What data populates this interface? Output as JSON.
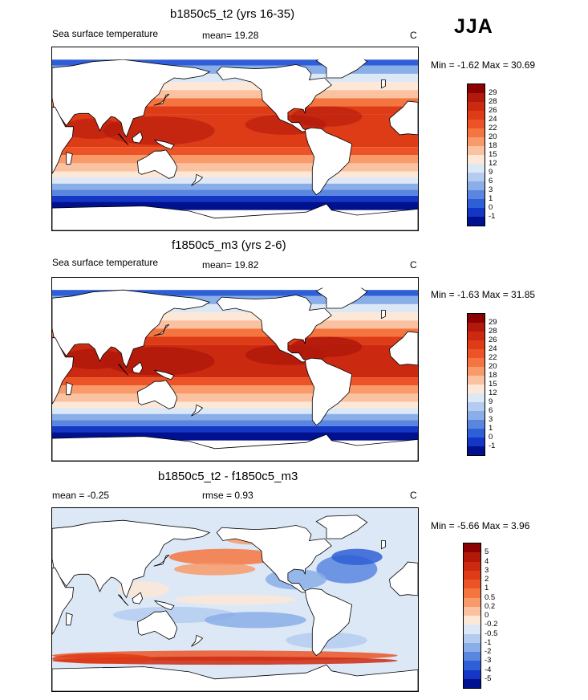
{
  "season": "JJA",
  "panels": [
    {
      "id": "top",
      "title": "b1850c5_t2 (yrs 16-35)",
      "left_label": "Sea surface temperature",
      "mean_text": "mean=  19.28",
      "units": "C",
      "minmax": "Min =  -1.62 Max =  30.69",
      "scale": "absolute",
      "levels": [
        "29",
        "28",
        "26",
        "24",
        "22",
        "20",
        "18",
        "15",
        "12",
        "9",
        "6",
        "3",
        "1",
        "0",
        "-1"
      ],
      "colors": [
        "#8b0000",
        "#b2190b",
        "#cc2a10",
        "#de3b17",
        "#ec5427",
        "#f4753f",
        "#f89a6a",
        "#fbc2a1",
        "#fde8d7",
        "#dde8f6",
        "#b5ccf0",
        "#8aaee8",
        "#5a86e0",
        "#2f5fd6",
        "#1436c4",
        "#00118f"
      ]
    },
    {
      "id": "middle",
      "title": "f1850c5_m3 (yrs 2-6)",
      "left_label": "Sea surface temperature",
      "mean_text": "mean=  19.82",
      "units": "C",
      "minmax": "Min =  -1.63 Max =  31.85",
      "scale": "absolute",
      "levels": [
        "29",
        "28",
        "26",
        "24",
        "22",
        "20",
        "18",
        "15",
        "12",
        "9",
        "6",
        "3",
        "1",
        "0",
        "-1"
      ],
      "colors": [
        "#8b0000",
        "#b2190b",
        "#cc2a10",
        "#de3b17",
        "#ec5427",
        "#f4753f",
        "#f89a6a",
        "#fbc2a1",
        "#fde8d7",
        "#dde8f6",
        "#b5ccf0",
        "#8aaee8",
        "#5a86e0",
        "#2f5fd6",
        "#1436c4",
        "#00118f"
      ]
    },
    {
      "id": "bottom",
      "title": "b1850c5_t2 - f1850c5_m3",
      "left_label": "mean =  -0.25",
      "mean_text": "rmse =   0.93",
      "units": "C",
      "minmax": "Min =  -5.66 Max =   3.96",
      "scale": "difference",
      "levels": [
        "5",
        "4",
        "3",
        "2",
        "1",
        "0.5",
        "0.2",
        "0",
        "-0.2",
        "-0.5",
        "-1",
        "-2",
        "-3",
        "-4",
        "-5"
      ],
      "colors": [
        "#8b0000",
        "#b2190b",
        "#cc2a10",
        "#de3b17",
        "#ec5427",
        "#f4753f",
        "#f89a6a",
        "#fbc2a1",
        "#fde8d7",
        "#dde8f6",
        "#b5ccf0",
        "#8aaee8",
        "#5a86e0",
        "#2f5fd6",
        "#1436c4",
        "#00118f"
      ]
    }
  ]
}
